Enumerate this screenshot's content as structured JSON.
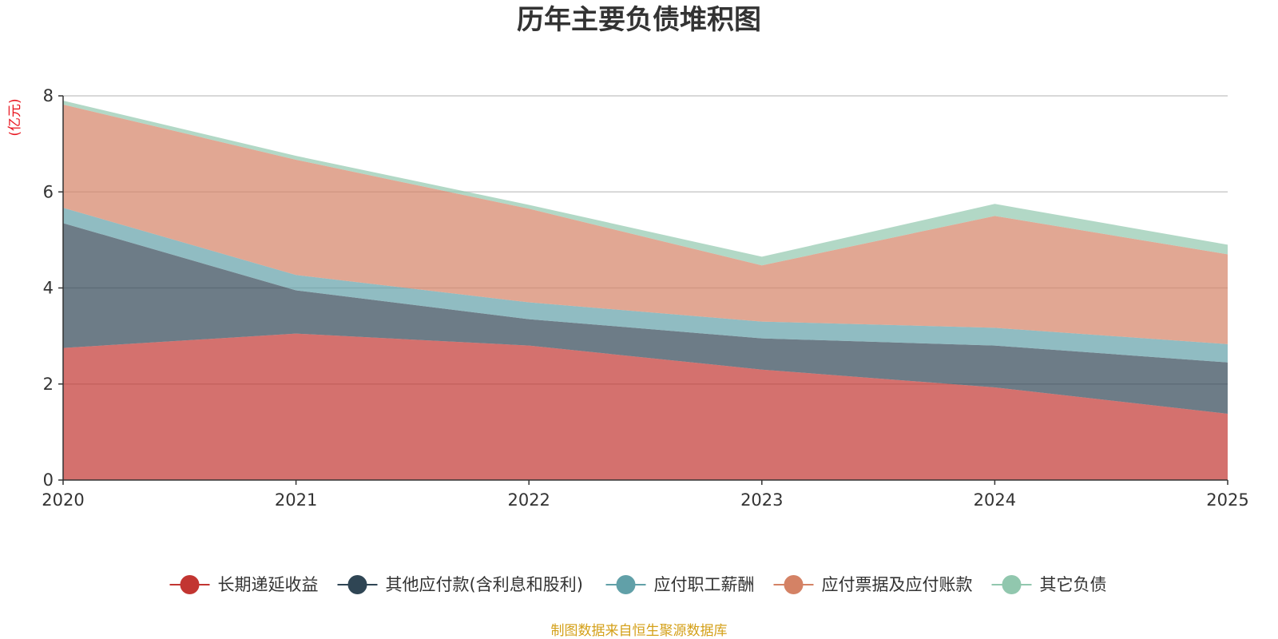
{
  "chart_data": {
    "type": "area",
    "stacked": true,
    "title": "历年主要负债堆积图",
    "unit_label": "(亿元)",
    "source": "制图数据来自恒生聚源数据库",
    "categories": [
      "2020",
      "2021",
      "2022",
      "2023",
      "2024",
      "2025"
    ],
    "ylim": [
      0,
      8
    ],
    "yticks": [
      0,
      2,
      4,
      6,
      8
    ],
    "grid": true,
    "legend_position": "bottom",
    "series": [
      {
        "name": "长期递延收益",
        "color": "#c23531",
        "values": [
          2.75,
          3.05,
          2.8,
          2.3,
          1.93,
          1.38
        ]
      },
      {
        "name": "其他应付款(含利息和股利)",
        "color": "#2f4554",
        "values": [
          2.6,
          0.9,
          0.55,
          0.65,
          0.87,
          1.07
        ]
      },
      {
        "name": "应付职工薪酬",
        "color": "#61a0a8",
        "values": [
          0.32,
          0.32,
          0.35,
          0.35,
          0.37,
          0.38
        ]
      },
      {
        "name": "应付票据及应付账款",
        "color": "#d48265",
        "values": [
          2.15,
          2.4,
          1.95,
          1.17,
          2.33,
          1.87
        ]
      },
      {
        "name": "其它负债",
        "color": "#91c7ae",
        "values": [
          0.08,
          0.08,
          0.08,
          0.18,
          0.25,
          0.2
        ]
      }
    ]
  }
}
